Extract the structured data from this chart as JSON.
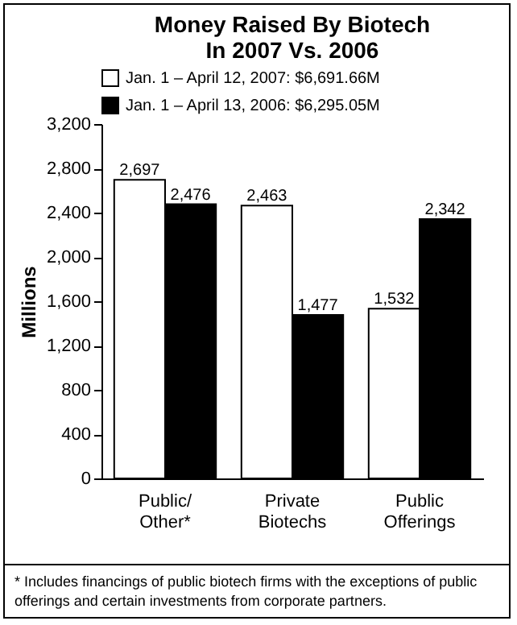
{
  "chart_data": {
    "type": "bar",
    "title": "Money Raised By Biotech In 2007 Vs. 2006",
    "ylabel": "Millions",
    "categories": [
      "Public/ Other*",
      "Private Biotechs",
      "Public Offerings"
    ],
    "series": [
      {
        "name": "Jan. 1 – April 12, 2007: $6,691.66M",
        "color": "#ffffff",
        "values": [
          2697,
          2463,
          1532
        ],
        "value_labels": [
          "2,697",
          "2,463",
          "1,532"
        ]
      },
      {
        "name": "Jan. 1 – April 13, 2006: $6,295.05M",
        "color": "#000000",
        "values": [
          2476,
          1477,
          2342
        ],
        "value_labels": [
          "2,476",
          "1,477",
          "2,342"
        ]
      }
    ],
    "ylim": [
      0,
      3200
    ],
    "yticks": [
      0,
      {
        "value": 400,
        "label": "400"
      },
      {
        "value": 800,
        "label": "800"
      },
      {
        "value": 1200,
        "label": "1,200"
      },
      {
        "value": 1600,
        "label": "1,600"
      },
      {
        "value": 2000,
        "label": "2,000"
      },
      {
        "value": 2400,
        "label": "2,400"
      },
      {
        "value": 2800,
        "label": "2,800"
      },
      {
        "value": 3200,
        "label": "3,200"
      }
    ],
    "legend": "top left",
    "annotations": [
      "* Includes financings of public biotech firms with the exceptions of public offerings and certain investments from corporate partners."
    ]
  }
}
